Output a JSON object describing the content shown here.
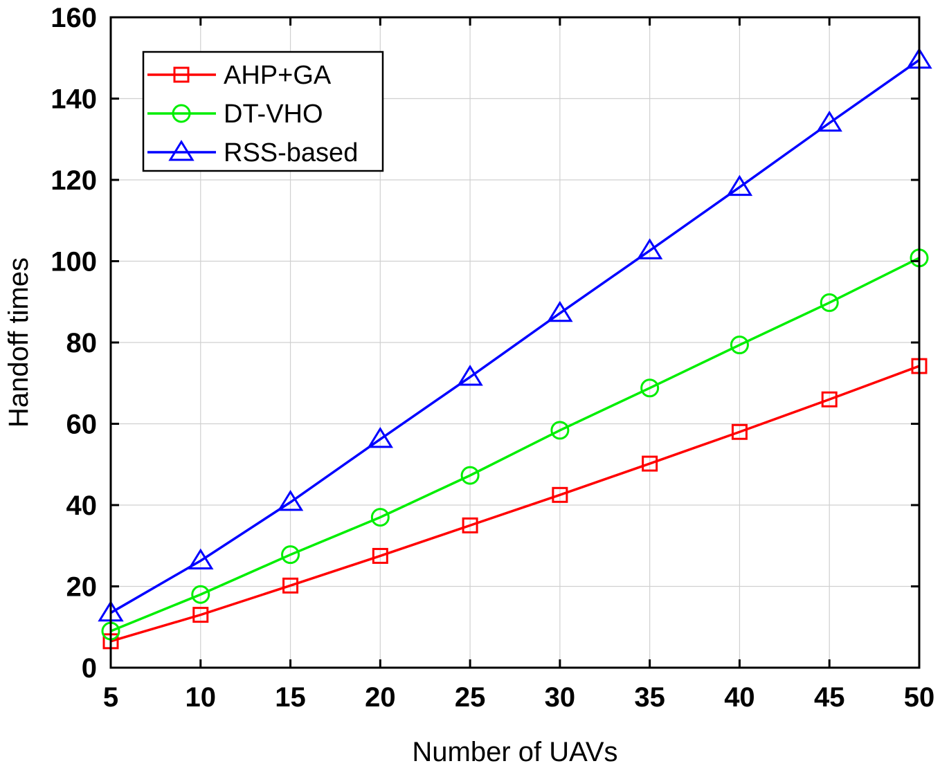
{
  "chart_data": {
    "type": "line",
    "title": "",
    "xlabel": "Number of UAVs",
    "ylabel": "Handoff times",
    "x": [
      5,
      10,
      15,
      20,
      25,
      30,
      35,
      40,
      45,
      50
    ],
    "xlim": [
      5,
      50
    ],
    "ylim": [
      0,
      160
    ],
    "xticks": [
      "5",
      "10",
      "15",
      "20",
      "25",
      "30",
      "35",
      "40",
      "45",
      "50"
    ],
    "yticks": [
      "0",
      "20",
      "40",
      "60",
      "80",
      "100",
      "120",
      "140",
      "160"
    ],
    "grid": true,
    "legend_position": "top-left",
    "series": [
      {
        "name": "AHP+GA",
        "color": "#ff0000",
        "marker": "square",
        "values": [
          6.5,
          13,
          20.2,
          27.5,
          35,
          42.5,
          50.2,
          58,
          66,
          74.2
        ]
      },
      {
        "name": "DT-VHO",
        "color": "#00ee00",
        "marker": "circle",
        "values": [
          9,
          18,
          27.8,
          37,
          47.3,
          58.4,
          68.8,
          79.4,
          89.8,
          100.8
        ]
      },
      {
        "name": "RSS-based",
        "color": "#0000ff",
        "marker": "triangle",
        "values": [
          13.5,
          26.3,
          40.7,
          56.2,
          71.5,
          87.2,
          102.6,
          118.2,
          134,
          149.5
        ]
      }
    ]
  }
}
